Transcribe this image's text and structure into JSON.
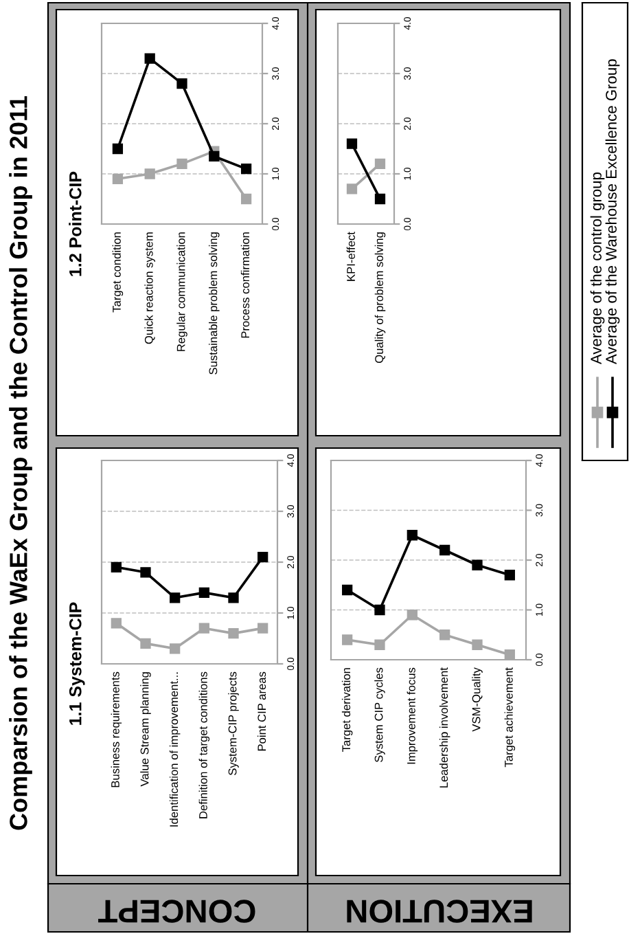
{
  "chart_data": [
    {
      "type": "line",
      "title": "1.1 System-CIP",
      "annotations": [
        "Comparsion of the WaEx Group and the Control Group in 2011",
        "CONCEPT"
      ],
      "categories": [
        "Business requirements",
        "Value Stream planning",
        "Identification of improvement...",
        "Definition of target conditions",
        "System-CIP projects",
        "Point CIP areas"
      ],
      "series": [
        {
          "name": "Average of the control group",
          "color": "#a6a6a6",
          "values": [
            0.8,
            0.4,
            0.3,
            0.7,
            0.6,
            0.7
          ]
        },
        {
          "name": "Average of the Warehouse Excellence Group",
          "color": "#000000",
          "values": [
            1.9,
            1.8,
            1.3,
            1.4,
            1.3,
            2.1
          ]
        }
      ],
      "ylim": [
        0,
        4
      ],
      "yticks": [
        {
          "value": 0,
          "label": "0.0"
        },
        {
          "value": 1,
          "label": "1.0"
        },
        {
          "value": 2,
          "label": "2.0"
        },
        {
          "value": 3,
          "label": "3.0"
        },
        {
          "value": 4,
          "label": "4.0"
        }
      ],
      "grid": "y",
      "marker": "square",
      "legend": "right"
    },
    {
      "type": "line",
      "title": "1.2 Point-CIP",
      "categories": [
        "Target condition",
        "Quick reaction system",
        "Regular communication",
        "Sustainable problem solving",
        "Process confirmation"
      ],
      "series": [
        {
          "color": "#a6a6a6",
          "values": [
            0.9,
            1.0,
            1.2,
            1.45,
            0.5
          ]
        },
        {
          "color": "#000000",
          "values": [
            1.5,
            3.3,
            2.8,
            1.35,
            1.1
          ]
        }
      ],
      "ylim": [
        0,
        4
      ],
      "yticks": [
        {
          "value": 0,
          "label": "0.0"
        },
        {
          "value": 1,
          "label": "1.0"
        },
        {
          "value": 2,
          "label": "2.0"
        },
        {
          "value": 3,
          "label": "3.0"
        },
        {
          "value": 4,
          "label": "4.0"
        }
      ],
      "grid": "y",
      "marker": "square"
    },
    {
      "type": "line",
      "annotations": [
        "EXECUTION"
      ],
      "categories": [
        "Target derivation",
        "System CIP cycles",
        "Improvement focus",
        "Leadership involvement",
        "VSM-Quality",
        "Target achievement"
      ],
      "series": [
        {
          "color": "#a6a6a6",
          "values": [
            0.4,
            0.3,
            0.9,
            0.5,
            0.3,
            0.1
          ]
        },
        {
          "color": "#000000",
          "values": [
            1.4,
            1.0,
            2.5,
            2.2,
            1.9,
            1.7
          ]
        }
      ],
      "ylim": [
        0,
        4
      ],
      "yticks": [
        {
          "value": 0,
          "label": "0.0"
        },
        {
          "value": 1,
          "label": "1.0"
        },
        {
          "value": 2,
          "label": "2.0"
        },
        {
          "value": 3,
          "label": "3.0"
        },
        {
          "value": 4,
          "label": "4.0"
        }
      ],
      "grid": "y",
      "marker": "square"
    },
    {
      "type": "line",
      "categories": [
        "KPI-effect",
        "Quality of problem solving"
      ],
      "series": [
        {
          "color": "#a6a6a6",
          "values": [
            0.7,
            1.2
          ]
        },
        {
          "color": "#000000",
          "values": [
            1.6,
            0.5
          ]
        }
      ],
      "ylim": [
        0,
        4
      ],
      "yticks": [
        {
          "value": 0,
          "label": "0.0"
        },
        {
          "value": 1,
          "label": "1.0"
        },
        {
          "value": 2,
          "label": "2.0"
        },
        {
          "value": 3,
          "label": "3.0"
        },
        {
          "value": 4,
          "label": "4.0"
        }
      ],
      "grid": "y",
      "marker": "square"
    }
  ]
}
